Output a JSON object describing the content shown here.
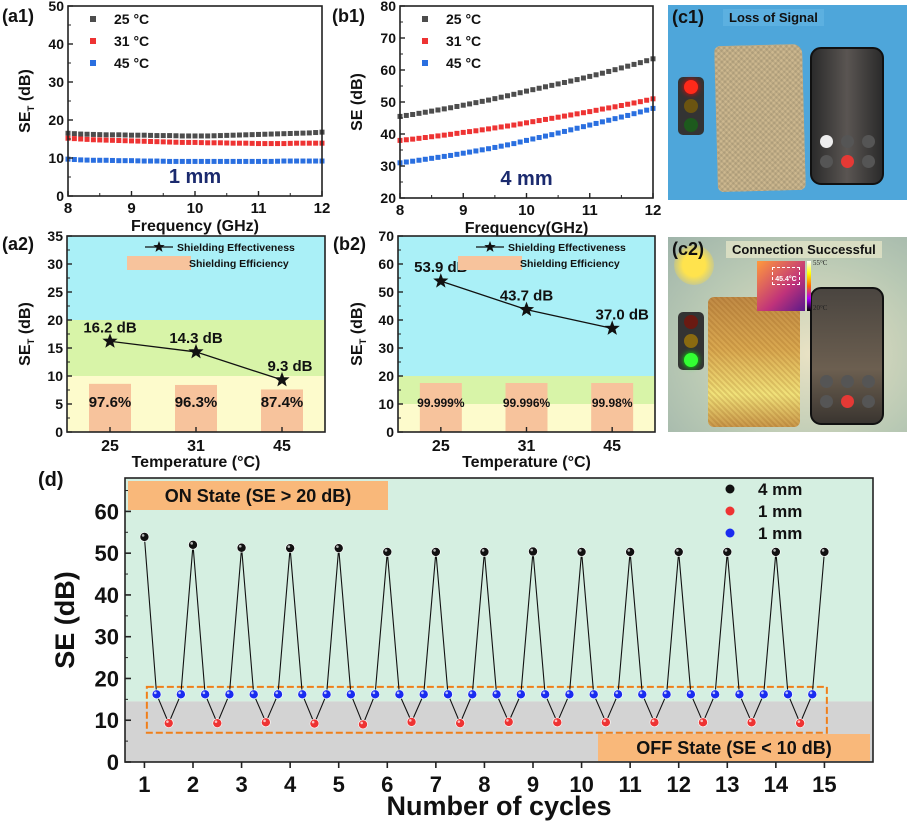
{
  "panels": {
    "a1": "(a1)",
    "b1": "(b1)",
    "a2": "(a2)",
    "b2": "(b2)",
    "c1": "(c1)",
    "c2": "(c2)",
    "d": "(d)"
  },
  "photos": {
    "c1": {
      "title": "Loss of Signal",
      "light": "red"
    },
    "c2": {
      "title": "Connection Successful",
      "light": "green",
      "thermal_spot": "45.4°C",
      "scale_max": "55°C",
      "scale_min": "20°C"
    }
  },
  "chart_data": [
    {
      "id": "a1",
      "type": "scatter",
      "title": "",
      "annotation": "1 mm",
      "xlabel": "Frequency (GHz)",
      "ylabel": "SE",
      "ylabel_sub": "T",
      "ylabel_unit": " (dB)",
      "xlim": [
        8,
        12
      ],
      "ylim": [
        0,
        50
      ],
      "xticks": [
        8,
        9,
        10,
        11,
        12
      ],
      "yticks": [
        0,
        10,
        20,
        30,
        40,
        50
      ],
      "legend": "top-left",
      "x": [
        8.0,
        8.2,
        8.4,
        8.6,
        8.8,
        9.0,
        9.2,
        9.4,
        9.6,
        9.8,
        10.0,
        10.2,
        10.4,
        10.6,
        10.8,
        11.0,
        11.2,
        11.4,
        11.6,
        11.8,
        12.0
      ],
      "series": [
        {
          "name": "25 °C",
          "color": "#4d4d4d",
          "values": [
            16.5,
            16.3,
            16.2,
            16.1,
            16.1,
            16.0,
            16.0,
            15.9,
            15.9,
            15.8,
            15.8,
            15.8,
            15.9,
            16.0,
            16.1,
            16.2,
            16.3,
            16.4,
            16.5,
            16.6,
            16.8
          ]
        },
        {
          "name": "31 °C",
          "color": "#ee3333",
          "values": [
            15.2,
            15.0,
            14.8,
            14.7,
            14.6,
            14.5,
            14.4,
            14.3,
            14.2,
            14.1,
            14.1,
            14.0,
            14.0,
            13.9,
            13.9,
            13.8,
            13.8,
            13.8,
            13.9,
            13.9,
            13.9
          ]
        },
        {
          "name": "45 °C",
          "color": "#2a6fe0",
          "values": [
            9.7,
            9.5,
            9.4,
            9.4,
            9.3,
            9.3,
            9.2,
            9.2,
            9.1,
            9.1,
            9.1,
            9.1,
            9.1,
            9.1,
            9.1,
            9.1,
            9.1,
            9.2,
            9.2,
            9.2,
            9.2
          ]
        }
      ]
    },
    {
      "id": "b1",
      "type": "scatter",
      "title": "",
      "annotation": "4 mm",
      "xlabel": "Frequency(GHz)",
      "ylabel": "SE",
      "ylabel_sub": "",
      "ylabel_unit": " (dB)",
      "xlim": [
        8,
        12
      ],
      "ylim": [
        20,
        80
      ],
      "xticks": [
        8,
        9,
        10,
        11,
        12
      ],
      "yticks": [
        20,
        30,
        40,
        50,
        60,
        70,
        80
      ],
      "legend": "top-left",
      "x": [
        8.0,
        8.2,
        8.4,
        8.6,
        8.8,
        9.0,
        9.2,
        9.4,
        9.6,
        9.8,
        10.0,
        10.2,
        10.4,
        10.6,
        10.8,
        11.0,
        11.2,
        11.4,
        11.6,
        11.8,
        12.0
      ],
      "series": [
        {
          "name": "25 °C",
          "color": "#4d4d4d",
          "values": [
            45.5,
            46.1,
            46.8,
            47.5,
            48.2,
            49.0,
            49.8,
            50.6,
            51.5,
            52.4,
            53.4,
            54.3,
            55.2,
            56.1,
            57.0,
            58.0,
            59.0,
            60.1,
            61.2,
            62.3,
            63.5
          ]
        },
        {
          "name": "31 °C",
          "color": "#ee3333",
          "values": [
            38.0,
            38.4,
            38.9,
            39.4,
            39.9,
            40.5,
            41.0,
            41.6,
            42.2,
            42.8,
            43.5,
            44.2,
            44.9,
            45.6,
            46.3,
            47.0,
            47.8,
            48.5,
            49.3,
            50.1,
            51.0
          ]
        },
        {
          "name": "45 °C",
          "color": "#2a6fe0",
          "values": [
            31.0,
            31.5,
            32.1,
            32.7,
            33.3,
            34.0,
            34.7,
            35.4,
            36.2,
            37.0,
            38.0,
            38.9,
            39.8,
            40.8,
            41.8,
            42.8,
            43.8,
            44.8,
            45.8,
            46.9,
            48.0
          ]
        }
      ]
    },
    {
      "id": "a2",
      "type": "bar+line",
      "xlabel": "Temperature (°C)",
      "ylabel": "SE",
      "ylabel_sub": "T",
      "ylabel_unit": " (dB)",
      "ylim": [
        0,
        35
      ],
      "yticks": [
        0,
        5,
        10,
        15,
        20,
        25,
        30,
        35
      ],
      "categories": [
        "25",
        "31",
        "45"
      ],
      "bands": [
        {
          "from": 0,
          "to": 10,
          "color": "#fdfbcc"
        },
        {
          "from": 10,
          "to": 20,
          "color": "#d8f4a8"
        },
        {
          "from": 20,
          "to": 35,
          "color": "#aaf0f7"
        }
      ],
      "legend": {
        "line": "Shielding Effectiveness",
        "bar": "Shielding Efficiency",
        "position": "top-right"
      },
      "se_values": [
        16.2,
        14.3,
        9.3
      ],
      "se_labels": [
        "16.2 dB",
        "14.3 dB",
        "9.3 dB"
      ],
      "bar_values": [
        8.6,
        8.4,
        7.6
      ],
      "bar_labels": [
        "97.6%",
        "96.3%",
        "87.4%"
      ]
    },
    {
      "id": "b2",
      "type": "bar+line",
      "xlabel": "Temperature (°C)",
      "ylabel": "SE",
      "ylabel_sub": "T",
      "ylabel_unit": " (dB)",
      "ylim": [
        0,
        70
      ],
      "yticks": [
        0,
        10,
        20,
        30,
        40,
        50,
        60,
        70
      ],
      "categories": [
        "25",
        "31",
        "45"
      ],
      "bands": [
        {
          "from": 0,
          "to": 10,
          "color": "#fdfbcc"
        },
        {
          "from": 10,
          "to": 20,
          "color": "#d8f4a8"
        },
        {
          "from": 20,
          "to": 70,
          "color": "#aaf0f7"
        }
      ],
      "legend": {
        "line": "Shielding Effectiveness",
        "bar": "Shielding Efficiency",
        "position": "top-right"
      },
      "se_values": [
        53.9,
        43.7,
        37.0
      ],
      "se_labels": [
        "53.9 dB",
        "43.7 dB",
        "37.0 dB"
      ],
      "bar_values": [
        17.5,
        17.5,
        17.5
      ],
      "bar_labels": [
        "99.999%",
        "99.996%",
        "99.98%"
      ]
    },
    {
      "id": "d",
      "type": "line+scatter",
      "xlabel": "Number of cycles",
      "ylabel": "SE (dB)",
      "xlim": [
        0.6,
        16.0
      ],
      "ylim": [
        0,
        68
      ],
      "xticks": [
        1,
        2,
        3,
        4,
        5,
        6,
        7,
        8,
        9,
        10,
        11,
        12,
        13,
        14,
        15
      ],
      "yticks": [
        0,
        10,
        20,
        30,
        40,
        50,
        60
      ],
      "on_state": {
        "label": "ON State (SE > 20 dB)",
        "threshold": 14.5,
        "color": "#d5efe1"
      },
      "off_state": {
        "label": "OFF State (SE < 10 dB)",
        "color": "#d3d3d3"
      },
      "highlight_box": {
        "x": [
          1.05,
          15.05
        ],
        "y": [
          7,
          18
        ],
        "color": "#f07f1a"
      },
      "legend": "top-right",
      "series": [
        {
          "name": "4 mm",
          "color": "#111111",
          "x": [
            1,
            2,
            3,
            4,
            5,
            6,
            7,
            8,
            9,
            10,
            11,
            12,
            13,
            14,
            15
          ],
          "values": [
            53.9,
            52.0,
            51.3,
            51.2,
            51.2,
            50.3,
            50.3,
            50.3,
            50.4,
            50.3,
            50.3,
            50.3,
            50.3,
            50.3,
            50.3
          ]
        },
        {
          "name": "1 mm",
          "color": "#ee3333",
          "x": [
            1.5,
            2.5,
            3.5,
            4.5,
            5.5,
            6.5,
            7.5,
            8.5,
            9.5,
            10.5,
            11.5,
            12.5,
            13.5,
            14.5
          ],
          "values": [
            9.3,
            9.3,
            9.5,
            9.2,
            9.0,
            9.6,
            9.3,
            9.6,
            9.5,
            9.5,
            9.5,
            9.5,
            9.5,
            9.3
          ]
        },
        {
          "name": "1 mm",
          "color": "#1a2cf0",
          "x": [
            1.25,
            1.75,
            2.25,
            2.75,
            3.25,
            3.75,
            4.25,
            4.75,
            5.25,
            5.75,
            6.25,
            6.75,
            7.25,
            7.75,
            8.25,
            8.75,
            9.25,
            9.75,
            10.25,
            10.75,
            11.25,
            11.75,
            12.25,
            12.75,
            13.25,
            13.75,
            14.25,
            14.75
          ],
          "values": [
            16.2,
            16.2,
            16.2,
            16.2,
            16.2,
            16.2,
            16.2,
            16.2,
            16.2,
            16.2,
            16.2,
            16.2,
            16.2,
            16.2,
            16.2,
            16.2,
            16.2,
            16.2,
            16.2,
            16.2,
            16.2,
            16.2,
            16.2,
            16.2,
            16.2,
            16.2,
            16.2,
            16.2
          ]
        }
      ]
    }
  ]
}
